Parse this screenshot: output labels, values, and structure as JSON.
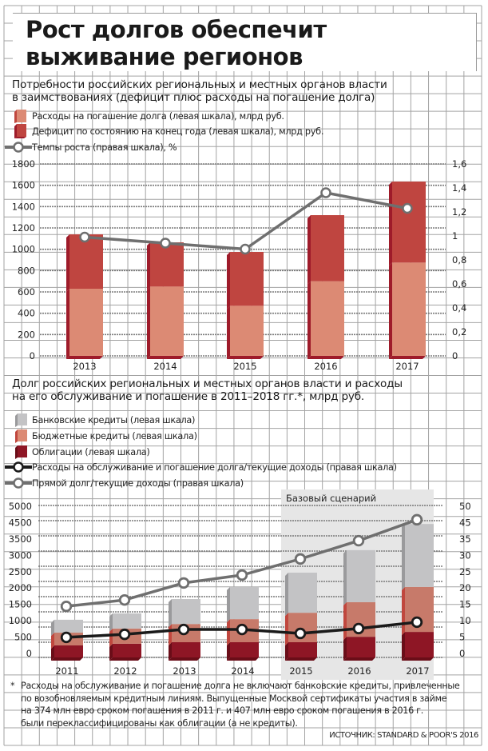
{
  "header": {
    "title_line1": "Рост долгов обеспечит",
    "title_line2": "выживание регионов"
  },
  "chart1_header": {
    "title_line1": "Потребности российских региональных и местных органов власти",
    "title_line2": "в заимствованиях (дефицит плюс расходы на погашение долга)",
    "legend": [
      {
        "label": "Расходы на погашение долга (левая шкала), млрд руб.",
        "icon": "bar-swatch-light-red"
      },
      {
        "label": "Дефицит по состоянию на конец года (левая шкала), млрд руб.",
        "icon": "bar-swatch-dark-red"
      },
      {
        "label": "Темпы роста (правая шкала), %",
        "icon": "line-marker-gray"
      }
    ]
  },
  "chart2_header": {
    "title_line1": "Долг российских региональных и местных органов власти и расходы",
    "title_line2": "на его обслуживание и погашение в 2011–2018 гг.*, млрд руб.",
    "legend": [
      {
        "label": "Банковские кредиты (левая шкала)",
        "icon": "bar-swatch-gray"
      },
      {
        "label": "Бюджетные кредиты (левая шкала)",
        "icon": "bar-swatch-salmon"
      },
      {
        "label": "Облигации (левая шкала)",
        "icon": "bar-swatch-maroon"
      },
      {
        "label": "Расходы на обслуживание и погашение долга/текущие доходы (правая шкала)",
        "icon": "line-marker-black"
      },
      {
        "label": "Прямой долг/текущие доходы (правая шкала)",
        "icon": "line-marker-gray"
      }
    ],
    "scenario_label": "Базовый сценарий"
  },
  "colors": {
    "deficit": "#bf4540",
    "deficit_side": "#9e1b2a",
    "repayment": "#dc8a74",
    "bank": "#c3c3c5",
    "bank_side": "#9a9a9c",
    "budget": "#c77a6a",
    "budget_side": "#c0473e",
    "bonds": "#8e1625",
    "bonds_side": "#6a0d18",
    "line_gray": "#6f6f6f",
    "line_black": "#1a1a1a",
    "grid": "#a3a3a3",
    "gridline_dotted": "#7a7a7a",
    "scenario_bg": "#e6e6e6"
  },
  "chart_data": [
    {
      "type": "bar",
      "stacked": true,
      "title": "Потребности российских региональных и местных органов власти в заимствованиях (дефицит плюс расходы на погашение долга)",
      "categories": [
        "2013",
        "2014",
        "2015",
        "2016",
        "2017"
      ],
      "series": [
        {
          "name": "Расходы на погашение долга (левая шкала), млрд руб.",
          "axis": "left",
          "values": [
            630,
            650,
            470,
            700,
            875
          ]
        },
        {
          "name": "Дефицит по состоянию на конец года (левая шкала), млрд руб.",
          "axis": "left",
          "values": [
            510,
            415,
            505,
            620,
            760
          ]
        },
        {
          "name": "Темпы роста (правая шкала), %",
          "axis": "right",
          "type": "line",
          "values": [
            0.99,
            0.94,
            0.89,
            1.36,
            1.23
          ]
        }
      ],
      "left_axis": {
        "ylim": [
          0,
          1800
        ],
        "ticks": [
          "1800",
          "1600",
          "1400",
          "1200",
          "1000",
          "800",
          "600",
          "400",
          "200",
          "0"
        ]
      },
      "right_axis": {
        "ylim": [
          0,
          1.6
        ],
        "ticks": [
          "1,6",
          "1,4",
          "1,2",
          "1",
          "0,8",
          "0,6",
          "0,4",
          "0,2",
          "0"
        ]
      },
      "grid": true,
      "legend_position": "top-left"
    },
    {
      "type": "bar",
      "stacked": true,
      "title": "Долг российских региональных и местных органов власти и расходы на его обслуживание и погашение в 2011–2018 гг.*, млрд руб.",
      "categories": [
        "2011",
        "2012",
        "2013",
        "2014",
        "2015",
        "2016",
        "2017"
      ],
      "series": [
        {
          "name": "Облигации (левая шкала)",
          "axis": "left",
          "values": [
            395,
            450,
            500,
            500,
            500,
            680,
            840
          ]
        },
        {
          "name": "Бюджетные кредиты (левая шкала)",
          "axis": "left",
          "values": [
            420,
            500,
            600,
            760,
            970,
            1140,
            1480
          ]
        },
        {
          "name": "Банковские кредиты (левая шкала)",
          "axis": "left",
          "values": [
            425,
            500,
            820,
            1060,
            1320,
            1710,
            2070
          ]
        },
        {
          "name": "Расходы на обслуживание и погашение долга/текущие доходы (правая шкала)",
          "axis": "right",
          "type": "line",
          "values": [
            6.6,
            7.6,
            9.2,
            9.2,
            7.9,
            9.5,
            11.6
          ]
        },
        {
          "name": "Прямой долг/текущие доходы (правая шкала)",
          "axis": "right",
          "type": "line",
          "values": [
            16.8,
            18.9,
            24.5,
            27.1,
            32.4,
            38.4,
            45.3
          ]
        }
      ],
      "left_axis": {
        "ylim": [
          0,
          5000
        ],
        "ticks": [
          "5000",
          "4500",
          "3500",
          "3000",
          "2500",
          "2000",
          "1500",
          "1000",
          "500",
          "0"
        ]
      },
      "right_axis": {
        "ylim": [
          0,
          50
        ],
        "ticks": [
          "50",
          "45",
          "35",
          "30",
          "25",
          "20",
          "15",
          "10",
          "5",
          "0"
        ]
      },
      "shaded_region": {
        "label": "Базовый сценарий",
        "categories": [
          "2015",
          "2016",
          "2017"
        ]
      },
      "grid": true,
      "legend_position": "top-left"
    }
  ],
  "footnote": {
    "asterisk": "*",
    "lines": [
      "Расходы на обслуживание и погашение долга не включают банковские кредиты, привлеченные",
      "по возобновляемым кредитным линиям. Выпущенные Москвой сертификаты участия в займе",
      "на 374 млн евро сроком погашения в 2011 г. и 407 млн евро сроком погашения в 2016 г.",
      "были переклассифицированы как облигации (а не кредиты)."
    ]
  },
  "source": "ИСТОЧНИК: STANDARD & POOR'S 2016"
}
